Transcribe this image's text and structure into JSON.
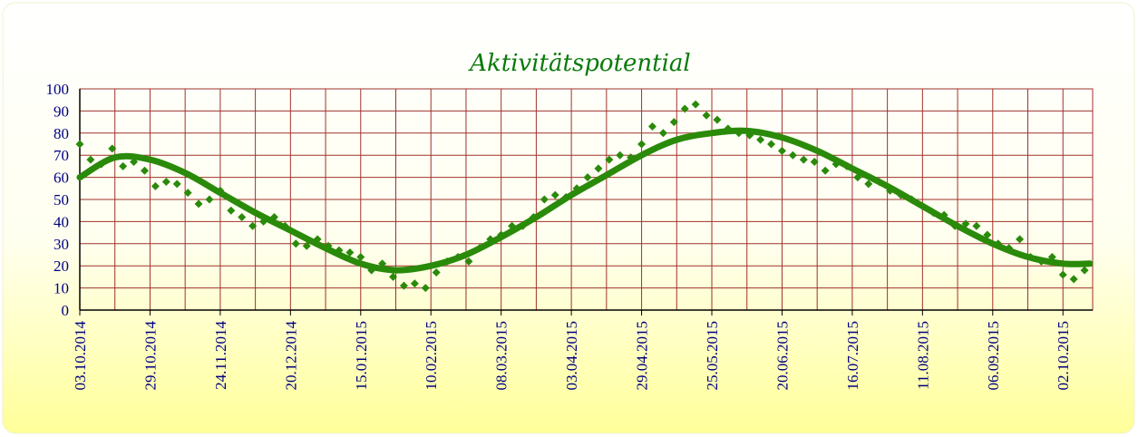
{
  "chart_data": {
    "type": "scatter",
    "title": "Aktivitätspotential",
    "xlim": [
      "2014-10-03",
      "2015-10-13"
    ],
    "xticks": [
      {
        "value": "2014-10-03",
        "label": "03.10.2014"
      },
      {
        "value": "2014-10-29",
        "label": "29.10.2014"
      },
      {
        "value": "2014-11-24",
        "label": "24.11.2014"
      },
      {
        "value": "2014-12-20",
        "label": "20.12.2014"
      },
      {
        "value": "2015-01-15",
        "label": "15.01.2015"
      },
      {
        "value": "2015-02-10",
        "label": "10.02.2015"
      },
      {
        "value": "2015-03-08",
        "label": "08.03.2015"
      },
      {
        "value": "2015-04-03",
        "label": "03.04.2015"
      },
      {
        "value": "2015-04-29",
        "label": "29.04.2015"
      },
      {
        "value": "2015-05-25",
        "label": "25.05.2015"
      },
      {
        "value": "2015-06-20",
        "label": "20.06.2015"
      },
      {
        "value": "2015-07-16",
        "label": "16.07.2015"
      },
      {
        "value": "2015-08-11",
        "label": "11.08.2015"
      },
      {
        "value": "2015-09-06",
        "label": "06.09.2015"
      },
      {
        "value": "2015-10-02",
        "label": "02.10.2015"
      }
    ],
    "ylim": [
      0,
      100
    ],
    "yticks": [
      0,
      10,
      20,
      30,
      40,
      50,
      60,
      70,
      80,
      90,
      100
    ],
    "grid": true,
    "series": [
      {
        "mode": "markers",
        "color": "#2a8a0a",
        "x": [
          "2014-10-03",
          "2014-10-07",
          "2014-10-11",
          "2014-10-15",
          "2014-10-19",
          "2014-10-23",
          "2014-10-27",
          "2014-10-31",
          "2014-11-04",
          "2014-11-08",
          "2014-11-12",
          "2014-11-16",
          "2014-11-20",
          "2014-11-24",
          "2014-11-28",
          "2014-12-02",
          "2014-12-06",
          "2014-12-10",
          "2014-12-14",
          "2014-12-18",
          "2014-12-22",
          "2014-12-26",
          "2014-12-30",
          "2015-01-03",
          "2015-01-07",
          "2015-01-11",
          "2015-01-15",
          "2015-01-19",
          "2015-01-23",
          "2015-01-27",
          "2015-01-31",
          "2015-02-04",
          "2015-02-08",
          "2015-02-12",
          "2015-02-16",
          "2015-02-20",
          "2015-02-24",
          "2015-02-28",
          "2015-03-04",
          "2015-03-08",
          "2015-03-12",
          "2015-03-16",
          "2015-03-20",
          "2015-03-24",
          "2015-03-28",
          "2015-04-01",
          "2015-04-05",
          "2015-04-09",
          "2015-04-13",
          "2015-04-17",
          "2015-04-21",
          "2015-04-25",
          "2015-04-29",
          "2015-05-03",
          "2015-05-07",
          "2015-05-11",
          "2015-05-15",
          "2015-05-19",
          "2015-05-23",
          "2015-05-27",
          "2015-05-31",
          "2015-06-04",
          "2015-06-08",
          "2015-06-12",
          "2015-06-16",
          "2015-06-20",
          "2015-06-24",
          "2015-06-28",
          "2015-07-02",
          "2015-07-06",
          "2015-07-10",
          "2015-07-14",
          "2015-07-18",
          "2015-07-22",
          "2015-07-26",
          "2015-07-30",
          "2015-08-03",
          "2015-08-07",
          "2015-08-11",
          "2015-08-15",
          "2015-08-19",
          "2015-08-23",
          "2015-08-27",
          "2015-08-31",
          "2015-09-04",
          "2015-09-08",
          "2015-09-12",
          "2015-09-16",
          "2015-09-20",
          "2015-09-24",
          "2015-09-28",
          "2015-10-02",
          "2015-10-06",
          "2015-10-10"
        ],
        "values": [
          75,
          68,
          66,
          73,
          65,
          67,
          63,
          56,
          58,
          57,
          53,
          48,
          50,
          54,
          45,
          42,
          38,
          40,
          42,
          38,
          30,
          29,
          32,
          29,
          27,
          26,
          24,
          18,
          21,
          15,
          11,
          12,
          10,
          17,
          22,
          24,
          22,
          28,
          32,
          34,
          38,
          38,
          42,
          50,
          52,
          51,
          55,
          60,
          64,
          68,
          70,
          69,
          75,
          83,
          80,
          85,
          91,
          93,
          88,
          86,
          82,
          80,
          79,
          77,
          75,
          72,
          70,
          68,
          67,
          63,
          66,
          65,
          60,
          57,
          58,
          54,
          52,
          50,
          47,
          44,
          43,
          38,
          39,
          38,
          34,
          30,
          28,
          32,
          24,
          22,
          24,
          16,
          14,
          18
        ]
      },
      {
        "mode": "line",
        "color": "#2a8a0a",
        "x": [
          "2014-10-03",
          "2014-10-16",
          "2014-10-29",
          "2014-11-11",
          "2014-11-24",
          "2014-12-07",
          "2014-12-20",
          "2015-01-02",
          "2015-01-15",
          "2015-01-28",
          "2015-02-10",
          "2015-02-23",
          "2015-03-08",
          "2015-03-21",
          "2015-04-03",
          "2015-04-16",
          "2015-04-29",
          "2015-05-12",
          "2015-05-25",
          "2015-06-07",
          "2015-06-20",
          "2015-07-03",
          "2015-07-16",
          "2015-07-29",
          "2015-08-11",
          "2015-08-24",
          "2015-09-06",
          "2015-09-19",
          "2015-10-02",
          "2015-10-12"
        ],
        "values": [
          60,
          69,
          68,
          62,
          53,
          44,
          36,
          28,
          21,
          18,
          20,
          25,
          33,
          42,
          52,
          61,
          70,
          77,
          80,
          81,
          78,
          72,
          64,
          56,
          47,
          38,
          30,
          24,
          21,
          21
        ]
      }
    ]
  }
}
